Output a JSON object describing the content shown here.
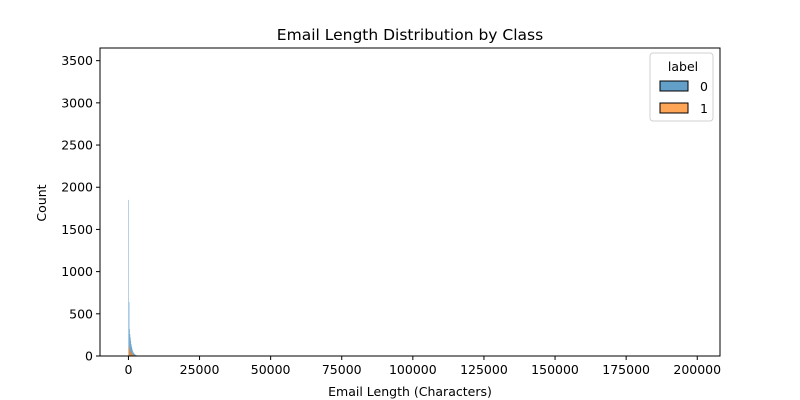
{
  "chart_data": {
    "type": "bar",
    "title": "Email Length Distribution by Class",
    "xlabel": "Email Length (Characters)",
    "ylabel": "Count",
    "xlim": [
      -10000,
      208000
    ],
    "ylim": [
      0,
      3650
    ],
    "x_ticks": [
      0,
      25000,
      50000,
      75000,
      100000,
      125000,
      150000,
      175000,
      200000
    ],
    "y_ticks": [
      0,
      500,
      1000,
      1500,
      2000,
      2500,
      3000,
      3500
    ],
    "grid": false,
    "legend": {
      "title": "label",
      "placement": "top-right"
    },
    "bin_width": 150,
    "series": [
      {
        "name": "0",
        "color": "#1f77b4",
        "bins": [
          [
            0,
            150,
            1850
          ],
          [
            150,
            300,
            640
          ],
          [
            300,
            450,
            320
          ],
          [
            450,
            600,
            260
          ],
          [
            600,
            750,
            220
          ],
          [
            750,
            900,
            180
          ],
          [
            900,
            1050,
            140
          ],
          [
            1050,
            1200,
            110
          ],
          [
            1200,
            1350,
            90
          ],
          [
            1350,
            1500,
            70
          ],
          [
            1500,
            1650,
            55
          ],
          [
            1650,
            1800,
            45
          ],
          [
            1800,
            1950,
            35
          ],
          [
            1950,
            2100,
            28
          ],
          [
            2100,
            2250,
            22
          ],
          [
            2250,
            2400,
            18
          ],
          [
            2400,
            2550,
            14
          ],
          [
            2550,
            2700,
            11
          ],
          [
            2700,
            2850,
            9
          ],
          [
            2850,
            3000,
            7
          ],
          [
            3000,
            3300,
            6
          ],
          [
            3300,
            3600,
            5
          ],
          [
            3600,
            4000,
            4
          ],
          [
            4000,
            4500,
            3
          ],
          [
            4500,
            5000,
            2
          ],
          [
            5000,
            6000,
            2
          ]
        ]
      },
      {
        "name": "1",
        "color": "#ff7f0e",
        "bins": [
          [
            0,
            150,
            120
          ],
          [
            150,
            300,
            95
          ],
          [
            300,
            450,
            85
          ],
          [
            450,
            600,
            72
          ],
          [
            600,
            750,
            60
          ],
          [
            750,
            900,
            50
          ],
          [
            900,
            1050,
            42
          ],
          [
            1050,
            1200,
            36
          ],
          [
            1200,
            1350,
            30
          ],
          [
            1350,
            1500,
            25
          ],
          [
            1500,
            1650,
            20
          ],
          [
            1650,
            1800,
            16
          ],
          [
            1800,
            1950,
            13
          ],
          [
            1950,
            2100,
            10
          ],
          [
            2100,
            2250,
            8
          ],
          [
            2250,
            2400,
            6
          ],
          [
            2400,
            2550,
            5
          ],
          [
            2550,
            2700,
            4
          ],
          [
            2700,
            2850,
            3
          ],
          [
            2850,
            3000,
            3
          ],
          [
            3000,
            3500,
            2
          ],
          [
            3500,
            4000,
            2
          ]
        ]
      }
    ]
  }
}
